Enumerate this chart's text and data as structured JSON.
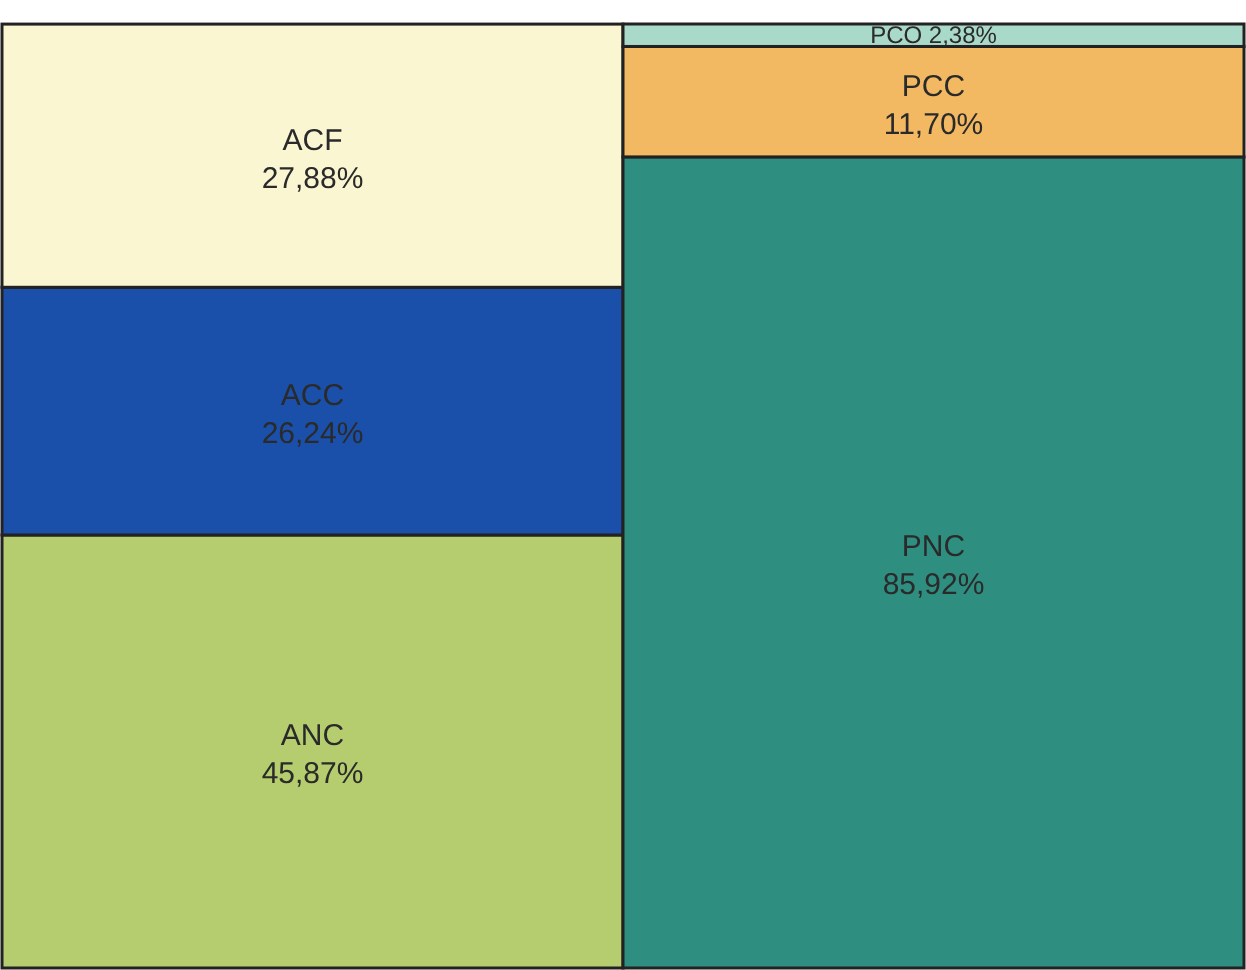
{
  "chart_data": {
    "type": "bar",
    "stacked": true,
    "categories": [
      null,
      null
    ],
    "ylim": [
      0,
      100
    ],
    "tick_labels": false,
    "series": [
      {
        "name": "ANC",
        "color": "#b5cd6e",
        "values": [
          45.87,
          null
        ],
        "value_labels": [
          "45,87%",
          null
        ]
      },
      {
        "name": "ACC",
        "color": "#1b50aa",
        "values": [
          26.24,
          null
        ],
        "value_labels": [
          "26,24%",
          null
        ]
      },
      {
        "name": "ACF",
        "color": "#fbf6d2",
        "values": [
          27.88,
          null
        ],
        "value_labels": [
          "27,88%",
          null
        ]
      },
      {
        "name": "PNC",
        "color": "#2e8f80",
        "values": [
          null,
          85.92
        ],
        "value_labels": [
          null,
          "85,92%"
        ]
      },
      {
        "name": "PCC",
        "color": "#f2b862",
        "values": [
          null,
          11.7
        ],
        "value_labels": [
          null,
          "11,70%"
        ]
      },
      {
        "name": "PCO",
        "color": "#a9d9c9",
        "values": [
          null,
          2.38
        ],
        "value_labels": [
          null,
          "2,38%"
        ]
      }
    ]
  }
}
